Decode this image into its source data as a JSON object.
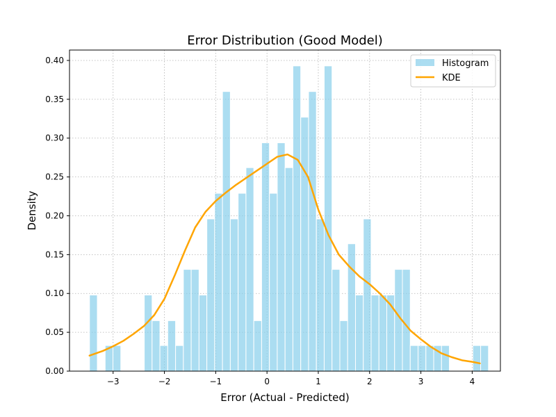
{
  "chart_data": {
    "type": "bar",
    "title": "Error Distribution (Good Model)",
    "xlabel": "Error (Actual - Predicted)",
    "ylabel": "Density",
    "xlim": [
      -3.85,
      4.55
    ],
    "ylim": [
      0,
      0.4134
    ],
    "grid": true,
    "legend_position": "top-right",
    "legend": [
      {
        "key": "histogram",
        "label": "Histogram",
        "color": "#87CEEB"
      },
      {
        "key": "kde",
        "label": "KDE",
        "color": "#FFA500"
      }
    ],
    "x_ticks": [
      {
        "value": -3,
        "label": "−3"
      },
      {
        "value": -2,
        "label": "−2"
      },
      {
        "value": -1,
        "label": "−1"
      },
      {
        "value": 0,
        "label": "0"
      },
      {
        "value": 1,
        "label": "1"
      },
      {
        "value": 2,
        "label": "2"
      },
      {
        "value": 3,
        "label": "3"
      },
      {
        "value": 4,
        "label": "4"
      }
    ],
    "y_ticks": [
      {
        "value": 0.0,
        "label": "0.00"
      },
      {
        "value": 0.05,
        "label": "0.05"
      },
      {
        "value": 0.1,
        "label": "0.10"
      },
      {
        "value": 0.15,
        "label": "0.15"
      },
      {
        "value": 0.2,
        "label": "0.20"
      },
      {
        "value": 0.25,
        "label": "0.25"
      },
      {
        "value": 0.3,
        "label": "0.30"
      },
      {
        "value": 0.35,
        "label": "0.35"
      },
      {
        "value": 0.4,
        "label": "0.40"
      }
    ],
    "histogram": {
      "name": "Histogram",
      "bin_start": -3.46,
      "bin_width": 0.1525,
      "densities": [
        0.098,
        0.0,
        0.033,
        0.033,
        0.0,
        0.0,
        0.0,
        0.098,
        0.065,
        0.033,
        0.065,
        0.033,
        0.131,
        0.131,
        0.098,
        0.196,
        0.229,
        0.36,
        0.196,
        0.229,
        0.262,
        0.065,
        0.294,
        0.229,
        0.294,
        0.262,
        0.393,
        0.327,
        0.36,
        0.196,
        0.393,
        0.131,
        0.065,
        0.164,
        0.098,
        0.196,
        0.098,
        0.098,
        0.098,
        0.131,
        0.131,
        0.033,
        0.033,
        0.033,
        0.033,
        0.033,
        0.0,
        0.0,
        0.0,
        0.033,
        0.033
      ]
    },
    "kde": {
      "name": "KDE",
      "x": [
        -3.46,
        -3.2,
        -3.0,
        -2.8,
        -2.6,
        -2.4,
        -2.2,
        -2.0,
        -1.8,
        -1.6,
        -1.4,
        -1.2,
        -1.0,
        -0.8,
        -0.6,
        -0.4,
        -0.2,
        0.0,
        0.2,
        0.4,
        0.6,
        0.8,
        1.0,
        1.2,
        1.4,
        1.6,
        1.8,
        2.0,
        2.2,
        2.4,
        2.6,
        2.8,
        3.0,
        3.2,
        3.4,
        3.6,
        3.8,
        4.0,
        4.15
      ],
      "y": [
        0.02,
        0.026,
        0.032,
        0.039,
        0.048,
        0.058,
        0.072,
        0.093,
        0.123,
        0.155,
        0.185,
        0.205,
        0.219,
        0.23,
        0.24,
        0.249,
        0.258,
        0.267,
        0.276,
        0.279,
        0.272,
        0.25,
        0.208,
        0.175,
        0.15,
        0.135,
        0.122,
        0.112,
        0.1,
        0.086,
        0.068,
        0.052,
        0.041,
        0.031,
        0.023,
        0.018,
        0.014,
        0.012,
        0.01
      ]
    }
  }
}
